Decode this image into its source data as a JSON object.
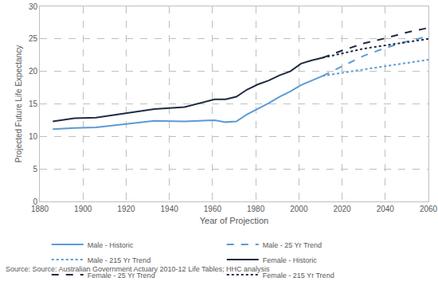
{
  "chart_data": {
    "type": "line",
    "x_label": "Year of Projection",
    "y_label": "Projected Future Life Expectancy",
    "note": "Source: Source: Australian Government Actuary 2010-12 Life Tables; HHC analysis",
    "xlim": [
      1880,
      2060
    ],
    "xticks": [
      1880,
      1900,
      1920,
      1940,
      1960,
      1980,
      2000,
      2020,
      2040,
      2060
    ],
    "ylim": [
      0,
      30
    ],
    "yticks": [
      0,
      5,
      10,
      15,
      20,
      25,
      30
    ],
    "grid": true,
    "legend": "bottom",
    "series": [
      {
        "name": "Male - Historic",
        "color": "#5b9bd5",
        "line_style": "solid",
        "x": [
          1886,
          1896,
          1906,
          1921,
          1933,
          1947,
          1954,
          1961,
          1966,
          1971,
          1976,
          1981,
          1986,
          1991,
          1996,
          2001,
          2006,
          2011
        ],
        "values": [
          11.1,
          11.3,
          11.4,
          12.0,
          12.4,
          12.3,
          12.4,
          12.5,
          12.2,
          12.3,
          13.4,
          14.2,
          15.1,
          16.1,
          16.9,
          17.9,
          18.6,
          19.3
        ]
      },
      {
        "name": "Male - 25 Yr Trend",
        "color": "#5b9bd5",
        "line_style": "dash",
        "x": [
          2011,
          2020,
          2030,
          2040,
          2050,
          2060
        ],
        "values": [
          19.3,
          20.8,
          22.4,
          23.6,
          24.6,
          25.4
        ]
      },
      {
        "name": "Male - 215 Yr Trend",
        "color": "#5b9bd5",
        "line_style": "dot",
        "x": [
          2011,
          2020,
          2030,
          2040,
          2050,
          2060
        ],
        "values": [
          19.3,
          19.8,
          20.3,
          20.8,
          21.3,
          21.8
        ]
      },
      {
        "name": "Female - Historic",
        "color": "#1f2a44",
        "line_style": "solid",
        "x": [
          1886,
          1896,
          1906,
          1921,
          1933,
          1947,
          1954,
          1961,
          1966,
          1971,
          1976,
          1981,
          1986,
          1991,
          1996,
          2001,
          2006,
          2011
        ],
        "values": [
          12.3,
          12.8,
          12.9,
          13.6,
          14.2,
          14.5,
          15.1,
          15.7,
          15.7,
          16.1,
          17.2,
          18.0,
          18.6,
          19.4,
          20.0,
          21.2,
          21.7,
          22.1
        ]
      },
      {
        "name": "Female - 25 Yr Trend",
        "color": "#1f2a44",
        "line_style": "dash",
        "x": [
          2011,
          2020,
          2030,
          2040,
          2050,
          2060
        ],
        "values": [
          22.1,
          23.2,
          24.3,
          25.1,
          26.0,
          26.7
        ]
      },
      {
        "name": "Female - 215 Yr Trend",
        "color": "#1f2a44",
        "line_style": "dot",
        "x": [
          2011,
          2020,
          2030,
          2040,
          2050,
          2060
        ],
        "values": [
          22.1,
          22.8,
          23.5,
          24.0,
          24.5,
          25.0
        ]
      }
    ]
  }
}
